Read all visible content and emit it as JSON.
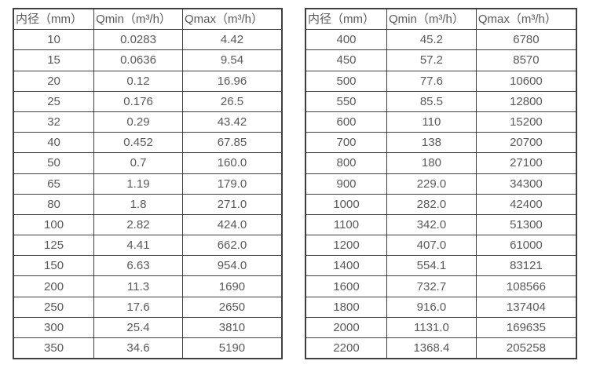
{
  "page": {
    "background_color": "#ffffff",
    "text_color": "#595959",
    "border_color": "#404040"
  },
  "tables": [
    {
      "name": "small-diameter-flow-table",
      "headers": [
        "内径（mm）",
        "Qmin（m³/h）",
        "Qmax（m³/h）"
      ],
      "rows": [
        [
          "10",
          "0.0283",
          "4.42"
        ],
        [
          "15",
          "0.0636",
          "9.54"
        ],
        [
          "20",
          "0.12",
          "16.96"
        ],
        [
          "25",
          "0.176",
          "26.5"
        ],
        [
          "32",
          "0.29",
          "43.42"
        ],
        [
          "40",
          "0.452",
          "67.85"
        ],
        [
          "50",
          "0.7",
          "160.0"
        ],
        [
          "65",
          "1.19",
          "179.0"
        ],
        [
          "80",
          "1.8",
          "271.0"
        ],
        [
          "100",
          "2.82",
          "424.0"
        ],
        [
          "125",
          "4.41",
          "662.0"
        ],
        [
          "150",
          "6.63",
          "954.0"
        ],
        [
          "200",
          "11.3",
          "1690"
        ],
        [
          "250",
          "17.6",
          "2650"
        ],
        [
          "300",
          "25.4",
          "3810"
        ],
        [
          "350",
          "34.6",
          "5190"
        ]
      ]
    },
    {
      "name": "large-diameter-flow-table",
      "headers": [
        "内径（mm）",
        "Qmin（m³/h）",
        "Qmax（m³/h）"
      ],
      "rows": [
        [
          "400",
          "45.2",
          "6780"
        ],
        [
          "450",
          "57.2",
          "8570"
        ],
        [
          "500",
          "77.6",
          "10600"
        ],
        [
          "550",
          "85.5",
          "12800"
        ],
        [
          "600",
          "110",
          "15200"
        ],
        [
          "700",
          "138",
          "20700"
        ],
        [
          "800",
          "180",
          "27100"
        ],
        [
          "900",
          "229.0",
          "34300"
        ],
        [
          "1000",
          "282.0",
          "42400"
        ],
        [
          "1100",
          "342.0",
          "51300"
        ],
        [
          "1200",
          "407.0",
          "61000"
        ],
        [
          "1400",
          "554.1",
          "83121"
        ],
        [
          "1600",
          "732.7",
          "108566"
        ],
        [
          "1800",
          "916.0",
          "137404"
        ],
        [
          "2000",
          "1131.0",
          "169635"
        ],
        [
          "2200",
          "1368.4",
          "205258"
        ]
      ]
    }
  ]
}
